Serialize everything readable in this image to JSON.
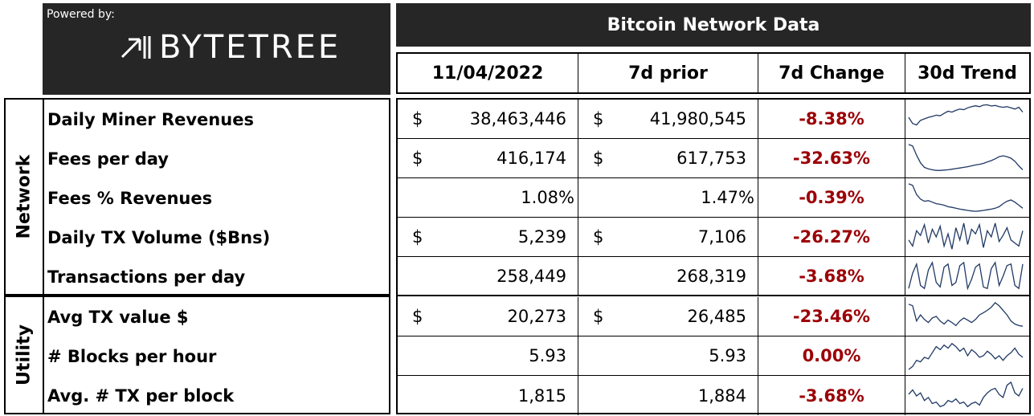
{
  "branding": {
    "powered_by": "Powered by:",
    "brand_name": "BYTETREE"
  },
  "title": "Bitcoin Network Data",
  "headers": [
    "11/04/2022",
    "7d prior",
    "7d Change",
    "30d Trend"
  ],
  "groups": [
    {
      "label": "Network"
    },
    {
      "label": "Utility"
    }
  ],
  "rows": [
    {
      "label": "Daily Miner Revenues",
      "currency": "$",
      "current": "38,463,446",
      "prior_currency": "$",
      "prior": "41,980,545",
      "change": "-8.38%",
      "trend": [
        0.55,
        0.35,
        0.3,
        0.45,
        0.5,
        0.55,
        0.58,
        0.62,
        0.6,
        0.68,
        0.75,
        0.72,
        0.78,
        0.82,
        0.8,
        0.86,
        0.9,
        0.93,
        0.9,
        0.95,
        0.96,
        0.92,
        0.94,
        0.9,
        0.88,
        0.9,
        0.86,
        0.82,
        0.88,
        0.72
      ]
    },
    {
      "label": "Fees per day",
      "currency": "$",
      "current": "416,174",
      "prior_currency": "$",
      "prior": "617,753",
      "change": "-32.63%",
      "trend": [
        0.95,
        0.9,
        0.6,
        0.35,
        0.2,
        0.15,
        0.12,
        0.1,
        0.1,
        0.11,
        0.12,
        0.14,
        0.16,
        0.18,
        0.2,
        0.22,
        0.25,
        0.28,
        0.3,
        0.33,
        0.38,
        0.42,
        0.48,
        0.55,
        0.58,
        0.55,
        0.5,
        0.4,
        0.25,
        0.12
      ]
    },
    {
      "label": "Fees % Revenues",
      "currency": "",
      "current": "1.08%",
      "prior_currency": "",
      "prior": "1.47%",
      "change": "-0.39%",
      "trend": [
        0.95,
        0.9,
        0.6,
        0.45,
        0.38,
        0.4,
        0.35,
        0.3,
        0.28,
        0.25,
        0.2,
        0.18,
        0.15,
        0.12,
        0.1,
        0.08,
        0.06,
        0.05,
        0.06,
        0.08,
        0.1,
        0.12,
        0.15,
        0.2,
        0.3,
        0.38,
        0.42,
        0.35,
        0.25,
        0.15
      ]
    },
    {
      "label": "Daily TX Volume ($Bns)",
      "currency": "$",
      "current": "5,239",
      "prior_currency": "$",
      "prior": "7,106",
      "change": "-26.27%",
      "trend": [
        0.4,
        0.2,
        0.7,
        0.55,
        0.9,
        0.3,
        0.75,
        0.5,
        0.85,
        0.2,
        0.6,
        0.1,
        0.8,
        0.4,
        0.95,
        0.25,
        0.75,
        0.6,
        0.9,
        0.15,
        0.7,
        0.5,
        0.95,
        0.35,
        0.55,
        0.8,
        0.4,
        0.3,
        0.2,
        0.7
      ]
    },
    {
      "label": "Transactions per day",
      "currency": "",
      "current": "258,449",
      "prior_currency": "",
      "prior": "268,319",
      "change": "-3.68%",
      "trend": [
        0.1,
        0.6,
        0.9,
        0.2,
        0.1,
        0.7,
        0.95,
        0.3,
        0.15,
        0.8,
        0.9,
        0.2,
        0.3,
        0.85,
        0.95,
        0.1,
        0.4,
        0.8,
        0.9,
        0.15,
        0.1,
        0.75,
        0.95,
        0.2,
        0.5,
        0.85,
        0.9,
        0.2,
        0.1,
        0.9
      ]
    },
    {
      "label": "Avg TX value $",
      "currency": "$",
      "current": "20,273",
      "prior_currency": "$",
      "prior": "26,485",
      "change": "-23.46%",
      "trend": [
        0.9,
        0.85,
        0.35,
        0.55,
        0.4,
        0.3,
        0.45,
        0.5,
        0.35,
        0.25,
        0.38,
        0.3,
        0.2,
        0.35,
        0.45,
        0.38,
        0.3,
        0.4,
        0.55,
        0.62,
        0.7,
        0.8,
        0.95,
        0.85,
        0.7,
        0.55,
        0.35,
        0.25,
        0.2,
        0.18
      ]
    },
    {
      "label": "# Blocks per hour",
      "currency": "",
      "current": "5.93",
      "prior_currency": "",
      "prior": "5.93",
      "change": "0.00%",
      "trend": [
        0.05,
        0.15,
        0.35,
        0.3,
        0.45,
        0.4,
        0.6,
        0.8,
        0.7,
        0.85,
        0.75,
        0.9,
        0.8,
        0.65,
        0.75,
        0.5,
        0.7,
        0.6,
        0.45,
        0.5,
        0.65,
        0.55,
        0.4,
        0.5,
        0.35,
        0.5,
        0.6,
        0.75,
        0.55,
        0.45
      ]
    },
    {
      "label": "Avg. # TX per block",
      "currency": "",
      "current": "1,815",
      "prior_currency": "",
      "prior": "1,884",
      "change": "-3.68%",
      "trend": [
        0.55,
        0.7,
        0.5,
        0.6,
        0.35,
        0.45,
        0.25,
        0.3,
        0.15,
        0.2,
        0.35,
        0.3,
        0.4,
        0.25,
        0.3,
        0.15,
        0.25,
        0.3,
        0.2,
        0.45,
        0.6,
        0.7,
        0.75,
        0.55,
        0.45,
        0.85,
        0.95,
        0.6,
        0.5,
        0.75
      ]
    }
  ],
  "colors": {
    "header_bg": "#262626",
    "change_text": "#9c0006",
    "trend_line": "#1f3864"
  }
}
